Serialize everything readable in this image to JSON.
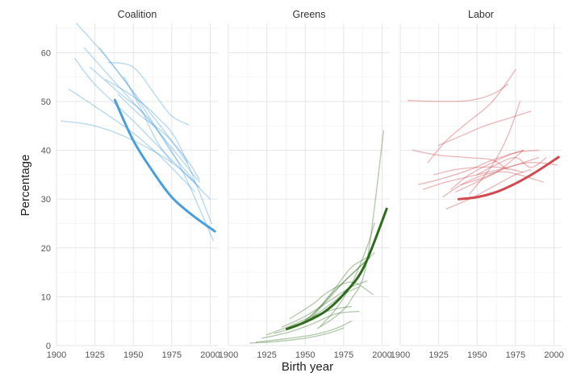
{
  "chart_data": {
    "type": "line",
    "xlabel": "Birth year",
    "ylabel": "Percentage",
    "xlim": [
      1900,
      2005
    ],
    "ylim": [
      0,
      66
    ],
    "x_ticks": [
      1900,
      1925,
      1950,
      1975,
      2000
    ],
    "y_ticks": [
      0,
      10,
      20,
      30,
      40,
      50,
      60
    ],
    "grid": true,
    "facets": [
      {
        "label": "Coalition",
        "color": "#4a9fdb",
        "trend": {
          "x": [
            1938,
            1950,
            1963,
            1975,
            1988,
            2003
          ],
          "y": [
            50.3,
            42.0,
            35.5,
            30.4,
            26.8,
            23.4
          ]
        },
        "cohort_lines": [
          {
            "x": [
              1903,
              1925,
              1950,
              1975,
              1993
            ],
            "y": [
              46.0,
              45.0,
              42.0,
              37.5,
              32.5
            ]
          },
          {
            "x": [
              1908,
              1925,
              1950,
              1970,
              1990
            ],
            "y": [
              52.5,
              49.0,
              43.5,
              38.0,
              31.5
            ]
          },
          {
            "x": [
              1912,
              1925,
              1950,
              1975,
              2000
            ],
            "y": [
              58.8,
              53.5,
              46.0,
              38.0,
              30.0
            ]
          },
          {
            "x": [
              1918,
              1935,
              1955,
              1975,
              1993
            ],
            "y": [
              61.0,
              55.0,
              48.0,
              40.5,
              33.5
            ]
          },
          {
            "x": [
              1913,
              1930,
              1950,
              1970,
              1985
            ],
            "y": [
              66.0,
              60.0,
              52.0,
              44.0,
              37.5
            ]
          },
          {
            "x": [
              1922,
              1940,
              1960,
              1980,
              2002
            ],
            "y": [
              57.0,
              52.0,
              46.5,
              37.0,
              21.5
            ]
          },
          {
            "x": [
              1928,
              1945,
              1960,
              1975,
              1990
            ],
            "y": [
              61.0,
              54.0,
              47.0,
              39.5,
              33.5
            ]
          },
          {
            "x": [
              1932,
              1950,
              1965,
              1980,
              2001
            ],
            "y": [
              54.5,
              51.0,
              47.0,
              41.0,
              25.0
            ]
          },
          {
            "x": [
              1934,
              1950,
              1965,
              1975,
              1986
            ],
            "y": [
              58.0,
              57.0,
              51.0,
              47.0,
              45.2
            ]
          },
          {
            "x": [
              1940,
              1955,
              1970,
              1985,
              1993
            ],
            "y": [
              51.5,
              47.0,
              43.5,
              38.0,
              34.0
            ]
          },
          {
            "x": [
              1944,
              1955,
              1965,
              1975
            ],
            "y": [
              55.0,
              48.5,
              42.0,
              37.5
            ]
          }
        ]
      },
      {
        "label": "Greens",
        "color": "#2f6b1d",
        "trend": {
          "x": [
            1938,
            1950,
            1963,
            1975,
            1988,
            2003
          ],
          "y": [
            3.4,
            4.8,
            7.0,
            10.5,
            16.0,
            28.0
          ]
        },
        "cohort_lines": [
          {
            "x": [
              1914,
              1930,
              1950,
              1965,
              1975
            ],
            "y": [
              0.5,
              0.8,
              1.5,
              2.5,
              3.6
            ]
          },
          {
            "x": [
              1918,
              1935,
              1955,
              1970,
              1980
            ],
            "y": [
              0.7,
              1.3,
              2.2,
              3.5,
              5.0
            ]
          },
          {
            "x": [
              1922,
              1940,
              1955,
              1970,
              1985
            ],
            "y": [
              1.5,
              2.8,
              4.5,
              6.5,
              7.0
            ]
          },
          {
            "x": [
              1925,
              1940,
              1955,
              1970,
              1980
            ],
            "y": [
              2.2,
              4.0,
              6.0,
              7.5,
              8.0
            ]
          },
          {
            "x": [
              1930,
              1945,
              1960,
              1975,
              1985
            ],
            "y": [
              2.5,
              4.0,
              7.0,
              10.5,
              12.0
            ]
          },
          {
            "x": [
              1935,
              1950,
              1965,
              1980,
              1990
            ],
            "y": [
              3.8,
              6.0,
              9.0,
              12.0,
              13.2
            ]
          },
          {
            "x": [
              1940,
              1955,
              1965,
              1980,
              1994
            ],
            "y": [
              5.5,
              8.5,
              11.0,
              13.0,
              10.5
            ]
          },
          {
            "x": [
              1945,
              1955,
              1970,
              1985,
              1995
            ],
            "y": [
              4.0,
              6.5,
              11.5,
              16.0,
              19.0
            ]
          },
          {
            "x": [
              1950,
              1960,
              1970,
              1980,
              1990
            ],
            "y": [
              5.0,
              8.0,
              12.0,
              16.0,
              18.0
            ]
          },
          {
            "x": [
              1955,
              1965,
              1975,
              1985,
              1992
            ],
            "y": [
              6.0,
              9.5,
              13.0,
              16.0,
              18.0
            ]
          },
          {
            "x": [
              1958,
              1970,
              1980,
              1990,
              2001
            ],
            "y": [
              3.5,
              6.0,
              9.5,
              17.0,
              44.0
            ]
          },
          {
            "x": [
              1960,
              1970,
              1980,
              1990,
              1995
            ],
            "y": [
              4.0,
              7.5,
              12.5,
              20.0,
              25.0
            ]
          }
        ]
      },
      {
        "label": "Labor",
        "color": "#d04a50",
        "trend": {
          "x": [
            1938,
            1950,
            1963,
            1975,
            1988,
            2003
          ],
          "y": [
            30.0,
            30.4,
            31.5,
            33.2,
            35.5,
            38.6
          ]
        },
        "cohort_lines": [
          {
            "x": [
              1905,
              1925,
              1945,
              1960,
              1970
            ],
            "y": [
              50.2,
              50.0,
              50.2,
              51.5,
              53.5
            ]
          },
          {
            "x": [
              1908,
              1925,
              1945,
              1960,
              1970
            ],
            "y": [
              40.0,
              39.0,
              38.5,
              38.0,
              36.0
            ]
          },
          {
            "x": [
              1912,
              1925,
              1945,
              1960,
              1980
            ],
            "y": [
              33.0,
              34.0,
              36.0,
              38.0,
              40.0
            ]
          },
          {
            "x": [
              1915,
              1930,
              1950,
              1970,
              1990
            ],
            "y": [
              32.0,
              33.5,
              35.0,
              36.5,
              38.5
            ]
          },
          {
            "x": [
              1918,
              1930,
              1945,
              1960,
              1975
            ],
            "y": [
              37.5,
              42.0,
              46.0,
              50.0,
              56.5
            ]
          },
          {
            "x": [
              1922,
              1935,
              1950,
              1965,
              1980
            ],
            "y": [
              35.0,
              36.0,
              36.5,
              36.5,
              35.5
            ]
          },
          {
            "x": [
              1925,
              1940,
              1955,
              1970,
              1985
            ],
            "y": [
              41.0,
              43.0,
              45.0,
              46.5,
              48.0
            ]
          },
          {
            "x": [
              1928,
              1940,
              1955,
              1970,
              1993
            ],
            "y": [
              30.5,
              33.0,
              35.0,
              35.5,
              33.5
            ]
          },
          {
            "x": [
              1930,
              1945,
              1960,
              1975,
              1985
            ],
            "y": [
              28.0,
              30.0,
              32.5,
              35.0,
              36.0
            ]
          },
          {
            "x": [
              1933,
              1945,
              1960,
              1975,
              1990
            ],
            "y": [
              32.0,
              35.0,
              37.5,
              39.5,
              40.0
            ]
          },
          {
            "x": [
              1936,
              1950,
              1965,
              1980
            ],
            "y": [
              31.5,
              33.5,
              36.0,
              40.0
            ]
          },
          {
            "x": [
              1940,
              1955,
              1970,
              1985,
              2002
            ],
            "y": [
              33.0,
              34.5,
              36.5,
              37.5,
              37.0
            ]
          },
          {
            "x": [
              1945,
              1960,
              1970,
              1978
            ],
            "y": [
              31.0,
              37.0,
              43.0,
              50.0
            ]
          },
          {
            "x": [
              1950,
              1962,
              1975,
              1985,
              1995
            ],
            "y": [
              35.0,
              37.0,
              38.5,
              36.5,
              38.5
            ]
          }
        ]
      }
    ]
  }
}
